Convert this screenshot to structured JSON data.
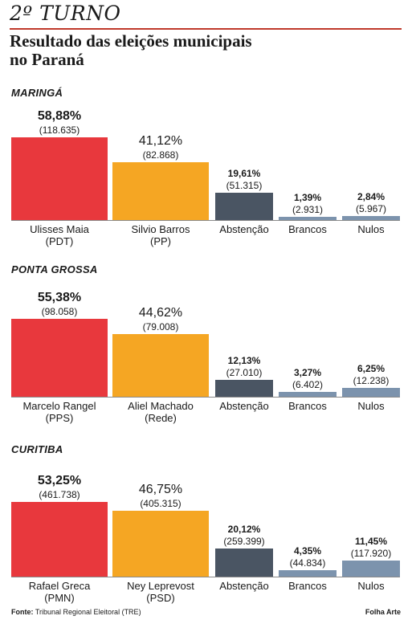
{
  "header": {
    "kicker": "2º TURNO",
    "title_line1": "Resultado das eleições municipais",
    "title_line2": "no Paraná"
  },
  "colors": {
    "winner": "#e8383d",
    "runner_up": "#f5a623",
    "abstention": "#4a5563",
    "blank": "#7c93ad",
    "null": "#7c93ad"
  },
  "chart_data": [
    {
      "type": "bar",
      "title": "MARINGÁ",
      "categories": [
        "Ulisses Maia (PDT)",
        "Silvio Barros (PP)",
        "Abstenção",
        "Brancos",
        "Nulos"
      ],
      "label_line1": [
        "Ulisses Maia",
        "Silvio Barros",
        "Abstenção",
        "Brancos",
        "Nulos"
      ],
      "label_line2": [
        "(PDT)",
        "(PP)",
        "",
        "",
        ""
      ],
      "percent_labels": [
        "58,88%",
        "41,12%",
        "19,61%",
        "1,39%",
        "2,84%"
      ],
      "count_labels": [
        "(118.635)",
        "(82.868)",
        "(51.315)",
        "(2.931)",
        "(5.967)"
      ],
      "values": [
        58.88,
        41.12,
        19.61,
        1.39,
        2.84
      ],
      "counts": [
        118635,
        82868,
        51315,
        2931,
        5967
      ]
    },
    {
      "type": "bar",
      "title": "PONTA GROSSA",
      "categories": [
        "Marcelo Rangel (PPS)",
        "Aliel Machado (Rede)",
        "Abstenção",
        "Brancos",
        "Nulos"
      ],
      "label_line1": [
        "Marcelo Rangel",
        "Aliel Machado",
        "Abstenção",
        "Brancos",
        "Nulos"
      ],
      "label_line2": [
        "(PPS)",
        "(Rede)",
        "",
        "",
        ""
      ],
      "percent_labels": [
        "55,38%",
        "44,62%",
        "12,13%",
        "3,27%",
        "6,25%"
      ],
      "count_labels": [
        "(98.058)",
        "(79.008)",
        "(27.010)",
        "(6.402)",
        "(12.238)"
      ],
      "values": [
        55.38,
        44.62,
        12.13,
        3.27,
        6.25
      ],
      "counts": [
        98058,
        79008,
        27010,
        6402,
        12238
      ]
    },
    {
      "type": "bar",
      "title": "CURITIBA",
      "categories": [
        "Rafael Greca (PMN)",
        "Ney Leprevost (PSD)",
        "Abstenção",
        "Brancos",
        "Nulos"
      ],
      "label_line1": [
        "Rafael Greca",
        "Ney Leprevost",
        "Abstenção",
        "Brancos",
        "Nulos"
      ],
      "label_line2": [
        "(PMN)",
        "(PSD)",
        "",
        "",
        ""
      ],
      "percent_labels": [
        "53,25%",
        "46,75%",
        "20,12%",
        "4,35%",
        "11,45%"
      ],
      "count_labels": [
        "(461.738)",
        "(405.315)",
        "(259.399)",
        "(44.834)",
        "(117.920)"
      ],
      "values": [
        53.25,
        46.75,
        20.12,
        4.35,
        11.45
      ],
      "counts": [
        461738,
        405315,
        259399,
        44834,
        117920
      ]
    }
  ],
  "footer": {
    "source_label": "Fonte:",
    "source_text": "Tribunal Regional Eleitoral (TRE)",
    "credit": "Folha Arte"
  }
}
